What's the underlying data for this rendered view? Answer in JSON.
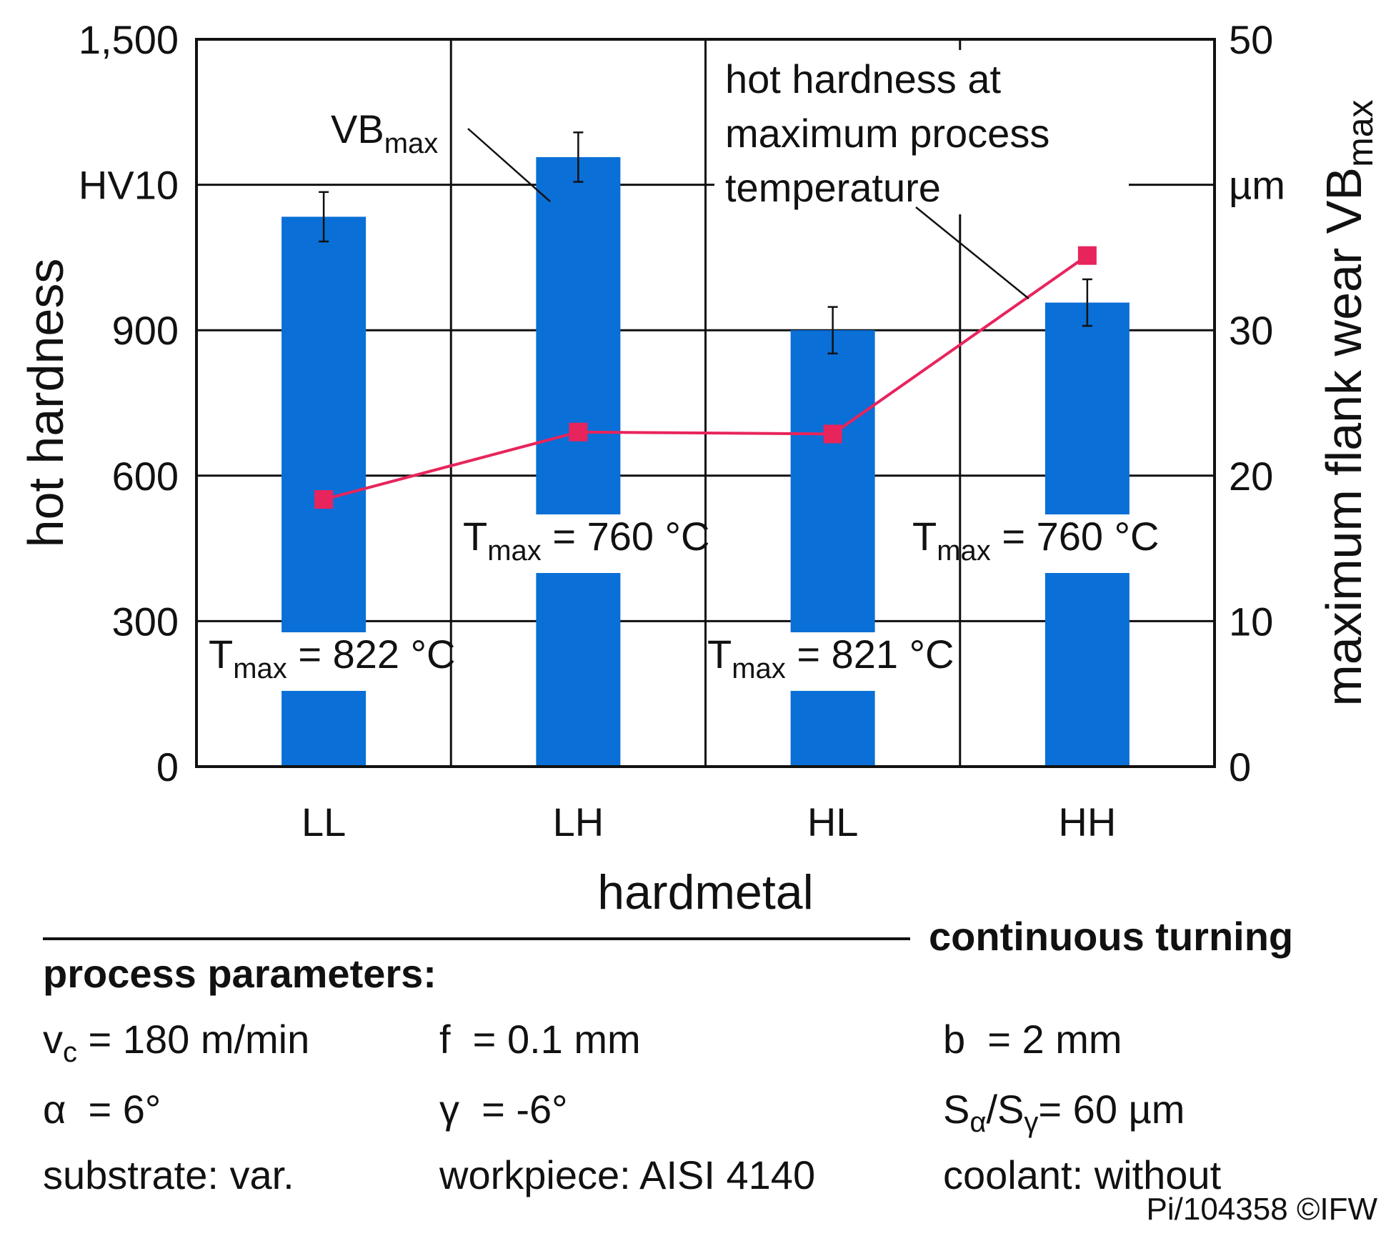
{
  "chart_data": {
    "type": "bar",
    "categories": [
      "LL",
      "LH",
      "HL",
      "HH"
    ],
    "series": [
      {
        "name": "VBmax",
        "axis": "right",
        "values": [
          37.8,
          41.9,
          30.0,
          31.9
        ],
        "errors": [
          1.7,
          1.7,
          1.6,
          1.6
        ],
        "color": "#0a6fd6"
      },
      {
        "name": "hot hardness at maximum process temperature",
        "axis": "left",
        "values": [
          551,
          690,
          686,
          1054
        ],
        "color": "#e8245c"
      }
    ],
    "bar_labels": [
      {
        "prefix": "T",
        "sub": "max",
        "text": " = 822 °C"
      },
      {
        "prefix": "T",
        "sub": "max",
        "text": " = 760 °C"
      },
      {
        "prefix": "T",
        "sub": "max",
        "text": " = 821 °C"
      },
      {
        "prefix": "T",
        "sub": "max",
        "text": " = 760 °C"
      }
    ],
    "ylabel_left": "hot hardness",
    "yunit_left": "HV10",
    "ylim_left": [
      0,
      1500
    ],
    "yticks_left": [
      "0",
      "300",
      "600",
      "900",
      "1,500"
    ],
    "ylabel_right": "maximum flank wear VB",
    "ylabel_right_sub": "max",
    "yunit_right": "µm",
    "ylim_right": [
      0,
      50
    ],
    "yticks_right": [
      "0",
      "10",
      "20",
      "30",
      "50"
    ],
    "xlabel": "hardmetal",
    "annotation_vb": {
      "main": "VB",
      "sub": "max"
    },
    "annotation_hot": [
      "hot hardness at",
      "maximum process",
      "temperature"
    ],
    "grid": true
  },
  "process": {
    "heading": "continuous turning",
    "params_title": "process parameters:",
    "rows": [
      [
        {
          "sym": "v",
          "sub": "c",
          "val": " = 180 m/min"
        },
        {
          "sym": "f",
          "sub": "",
          "val": "  = 0.1 mm"
        },
        {
          "sym": "b",
          "sub": "",
          "val": "  = 2 mm"
        }
      ],
      [
        {
          "sym": "α",
          "sub": "",
          "val": "  = 6°"
        },
        {
          "sym": "γ",
          "sub": "",
          "val": "  = -6°"
        },
        {
          "sym": "S",
          "sub": "α",
          "sym2": "/S",
          "sub2": "γ",
          "val": "= 60 µm"
        }
      ],
      [
        {
          "sym": "substrate: var.",
          "sub": "",
          "val": ""
        },
        {
          "sym": "workpiece: AISI 4140",
          "sub": "",
          "val": ""
        },
        {
          "sym": "coolant: without",
          "sub": "",
          "val": ""
        }
      ]
    ],
    "footer": "Pi/104358 ©IFW"
  }
}
